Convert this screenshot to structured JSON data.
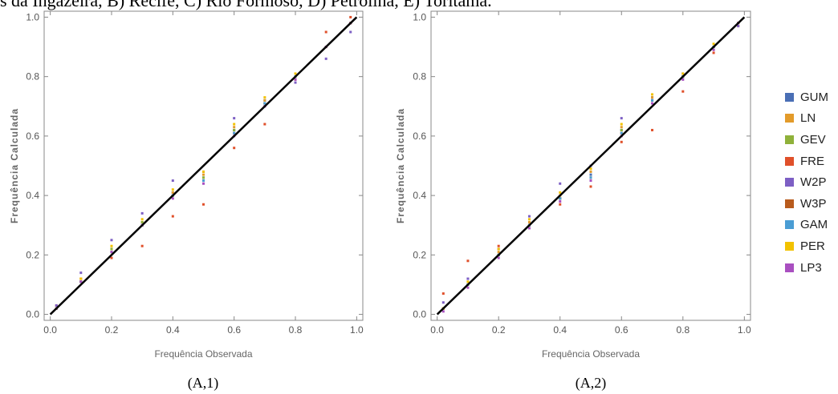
{
  "caption": "s da Ingazeira, B) Recife, C) Rio Formoso, D) Petrolina, E) Toritama.",
  "legend": [
    {
      "name": "GUM",
      "color": "#4a6fb5"
    },
    {
      "name": "LN",
      "color": "#e39b2a"
    },
    {
      "name": "GEV",
      "color": "#8fb13a"
    },
    {
      "name": "FRE",
      "color": "#e0502a"
    },
    {
      "name": "W2P",
      "color": "#7d5fc4"
    },
    {
      "name": "W3P",
      "color": "#b85b1d"
    },
    {
      "name": "GAM",
      "color": "#4a9dd4"
    },
    {
      "name": "PER",
      "color": "#f2c200"
    },
    {
      "name": "LP3",
      "color": "#a94fc0"
    }
  ],
  "chart_data": [
    {
      "type": "scatter",
      "panel_label": "(A,1)",
      "xlabel": "Frequência Observada",
      "ylabel": "Frequência Calculada",
      "xlim": [
        0,
        1
      ],
      "ylim": [
        0,
        1
      ],
      "xticks": [
        "0.0",
        "0.2",
        "0.4",
        "0.6",
        "0.8",
        "1.0"
      ],
      "yticks": [
        "0.0",
        "0.2",
        "0.4",
        "0.6",
        "0.8",
        "1.0"
      ],
      "reference_line": [
        [
          0,
          0
        ],
        [
          1,
          1
        ]
      ],
      "series": [
        {
          "name": "GUM",
          "x": [
            0.02,
            0.1,
            0.2,
            0.3,
            0.4,
            0.5,
            0.6,
            0.7,
            0.8,
            0.9,
            0.98
          ],
          "y": [
            0.02,
            0.11,
            0.21,
            0.3,
            0.41,
            0.46,
            0.62,
            0.72,
            0.8,
            0.9,
            0.98
          ]
        },
        {
          "name": "LN",
          "x": [
            0.02,
            0.1,
            0.2,
            0.3,
            0.4,
            0.5,
            0.6,
            0.7,
            0.8,
            0.9,
            0.98
          ],
          "y": [
            0.02,
            0.11,
            0.22,
            0.31,
            0.41,
            0.47,
            0.63,
            0.72,
            0.8,
            0.9,
            0.98
          ]
        },
        {
          "name": "GEV",
          "x": [
            0.02,
            0.1,
            0.2,
            0.3,
            0.4,
            0.5,
            0.6,
            0.7,
            0.8,
            0.9,
            0.98
          ],
          "y": [
            0.02,
            0.11,
            0.22,
            0.31,
            0.4,
            0.46,
            0.62,
            0.71,
            0.8,
            0.9,
            0.98
          ]
        },
        {
          "name": "FRE",
          "x": [
            0.02,
            0.1,
            0.2,
            0.3,
            0.4,
            0.5,
            0.6,
            0.7,
            0.8,
            0.9,
            0.98
          ],
          "y": [
            0.03,
            0.12,
            0.19,
            0.23,
            0.33,
            0.37,
            0.56,
            0.64,
            0.79,
            0.95,
            1.0
          ]
        },
        {
          "name": "W2P",
          "x": [
            0.02,
            0.1,
            0.2,
            0.3,
            0.4,
            0.5,
            0.6,
            0.7,
            0.8,
            0.9,
            0.98
          ],
          "y": [
            0.03,
            0.14,
            0.25,
            0.34,
            0.45,
            0.48,
            0.66,
            0.7,
            0.78,
            0.86,
            0.95
          ]
        },
        {
          "name": "W3P",
          "x": [
            0.02,
            0.1,
            0.2,
            0.3,
            0.4,
            0.5,
            0.6,
            0.7,
            0.8,
            0.9,
            0.98
          ],
          "y": [
            0.02,
            0.11,
            0.21,
            0.3,
            0.4,
            0.45,
            0.61,
            0.71,
            0.8,
            0.9,
            0.98
          ]
        },
        {
          "name": "GAM",
          "x": [
            0.02,
            0.1,
            0.2,
            0.3,
            0.4,
            0.5,
            0.6,
            0.7,
            0.8,
            0.9,
            0.98
          ],
          "y": [
            0.02,
            0.11,
            0.21,
            0.3,
            0.4,
            0.45,
            0.61,
            0.71,
            0.8,
            0.9,
            0.98
          ]
        },
        {
          "name": "PER",
          "x": [
            0.02,
            0.1,
            0.2,
            0.3,
            0.4,
            0.5,
            0.6,
            0.7,
            0.8,
            0.9,
            0.98
          ],
          "y": [
            0.02,
            0.12,
            0.23,
            0.32,
            0.42,
            0.48,
            0.64,
            0.73,
            0.81,
            0.9,
            0.98
          ]
        },
        {
          "name": "LP3",
          "x": [
            0.02,
            0.1,
            0.2,
            0.3,
            0.4,
            0.5,
            0.6,
            0.7,
            0.8,
            0.9,
            0.98
          ],
          "y": [
            0.02,
            0.11,
            0.21,
            0.3,
            0.39,
            0.44,
            0.6,
            0.7,
            0.79,
            0.9,
            0.98
          ]
        }
      ]
    },
    {
      "type": "scatter",
      "panel_label": "(A,2)",
      "xlabel": "Frequência Observada",
      "ylabel": "Frequência Calculada",
      "xlim": [
        0,
        1
      ],
      "ylim": [
        0,
        1
      ],
      "xticks": [
        "0.0",
        "0.2",
        "0.4",
        "0.6",
        "0.8",
        "1.0"
      ],
      "yticks": [
        "0.0",
        "0.2",
        "0.4",
        "0.6",
        "0.8",
        "1.0"
      ],
      "reference_line": [
        [
          0,
          0
        ],
        [
          1,
          1
        ]
      ],
      "series": [
        {
          "name": "GUM",
          "x": [
            0.02,
            0.1,
            0.2,
            0.3,
            0.4,
            0.5,
            0.6,
            0.7,
            0.8,
            0.9,
            0.98
          ],
          "y": [
            0.02,
            0.1,
            0.2,
            0.3,
            0.39,
            0.47,
            0.62,
            0.73,
            0.8,
            0.9,
            0.98
          ]
        },
        {
          "name": "LN",
          "x": [
            0.02,
            0.1,
            0.2,
            0.3,
            0.4,
            0.5,
            0.6,
            0.7,
            0.8,
            0.9,
            0.98
          ],
          "y": [
            0.02,
            0.1,
            0.21,
            0.31,
            0.4,
            0.48,
            0.63,
            0.73,
            0.8,
            0.9,
            0.98
          ]
        },
        {
          "name": "GEV",
          "x": [
            0.02,
            0.1,
            0.2,
            0.3,
            0.4,
            0.5,
            0.6,
            0.7,
            0.8,
            0.9,
            0.98
          ],
          "y": [
            0.02,
            0.1,
            0.2,
            0.3,
            0.39,
            0.46,
            0.62,
            0.72,
            0.8,
            0.9,
            0.98
          ]
        },
        {
          "name": "FRE",
          "x": [
            0.02,
            0.1,
            0.2,
            0.3,
            0.4,
            0.5,
            0.6,
            0.7,
            0.8,
            0.9,
            0.98
          ],
          "y": [
            0.07,
            0.18,
            0.23,
            0.3,
            0.37,
            0.43,
            0.58,
            0.62,
            0.75,
            0.88,
            0.97
          ]
        },
        {
          "name": "W2P",
          "x": [
            0.02,
            0.1,
            0.2,
            0.3,
            0.4,
            0.5,
            0.6,
            0.7,
            0.8,
            0.9,
            0.98
          ],
          "y": [
            0.04,
            0.12,
            0.22,
            0.33,
            0.44,
            0.5,
            0.66,
            0.72,
            0.81,
            0.9,
            0.97
          ]
        },
        {
          "name": "W3P",
          "x": [
            0.02,
            0.1,
            0.2,
            0.3,
            0.4,
            0.5,
            0.6,
            0.7,
            0.8,
            0.9,
            0.98
          ],
          "y": [
            0.02,
            0.1,
            0.2,
            0.3,
            0.39,
            0.46,
            0.61,
            0.72,
            0.8,
            0.9,
            0.98
          ]
        },
        {
          "name": "GAM",
          "x": [
            0.02,
            0.1,
            0.2,
            0.3,
            0.4,
            0.5,
            0.6,
            0.7,
            0.8,
            0.9,
            0.98
          ],
          "y": [
            0.02,
            0.1,
            0.2,
            0.3,
            0.39,
            0.46,
            0.61,
            0.72,
            0.8,
            0.9,
            0.98
          ]
        },
        {
          "name": "PER",
          "x": [
            0.02,
            0.1,
            0.2,
            0.3,
            0.4,
            0.5,
            0.6,
            0.7,
            0.8,
            0.9,
            0.98
          ],
          "y": [
            0.02,
            0.11,
            0.22,
            0.32,
            0.41,
            0.49,
            0.64,
            0.74,
            0.81,
            0.91,
            0.98
          ]
        },
        {
          "name": "LP3",
          "x": [
            0.02,
            0.1,
            0.2,
            0.3,
            0.4,
            0.5,
            0.6,
            0.7,
            0.8,
            0.9,
            0.98
          ],
          "y": [
            0.01,
            0.09,
            0.19,
            0.29,
            0.38,
            0.45,
            0.6,
            0.71,
            0.79,
            0.89,
            0.98
          ]
        }
      ]
    }
  ]
}
